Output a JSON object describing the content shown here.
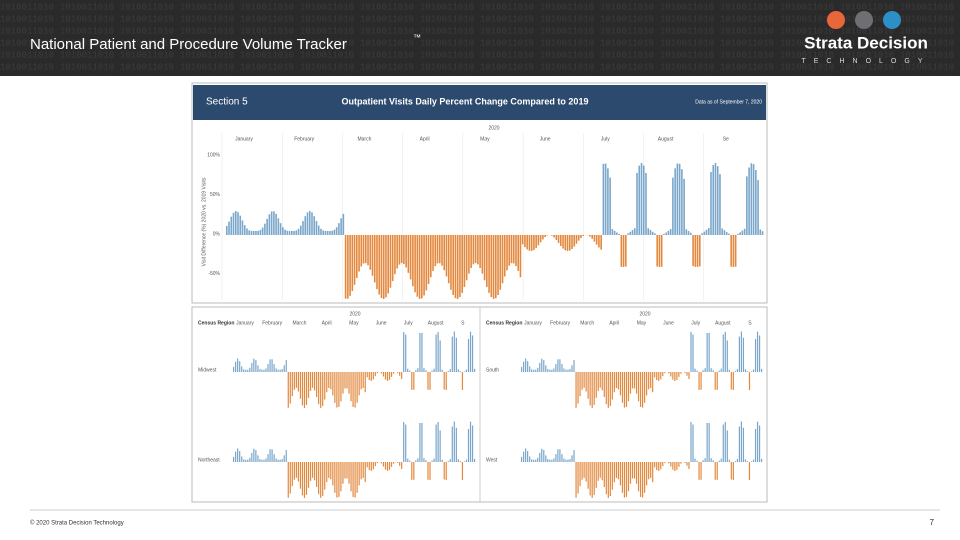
{
  "header": {
    "title": "National Patient and Procedure Volume Tracker",
    "trademark": "™",
    "brand": "Strata Decision",
    "brand_sub": "TECHNOLOGY"
  },
  "section": {
    "label": "Section 5",
    "title": "Outpatient Visits Daily Percent Change Compared to 2019",
    "note": "Data as of September 7, 2020",
    "year": "2020",
    "months": [
      "January",
      "February",
      "March",
      "April",
      "May",
      "June",
      "July",
      "August",
      "Se"
    ],
    "y_axis_label": "Visit Difference (%) 2020 vs. 2019 Visits",
    "yticks": [
      "100%",
      "50%",
      "0%",
      "-50%"
    ]
  },
  "regional": {
    "year": "2020",
    "column_header": "Census Region",
    "months": [
      "January",
      "February",
      "March",
      "April",
      "May",
      "June",
      "July",
      "August",
      "S"
    ],
    "regions": [
      [
        "Midwest",
        "Northeast"
      ],
      [
        "South",
        "West"
      ]
    ]
  },
  "footer": {
    "copyright": "© 2020 Strata Decision Technology",
    "page": "7"
  }
}
